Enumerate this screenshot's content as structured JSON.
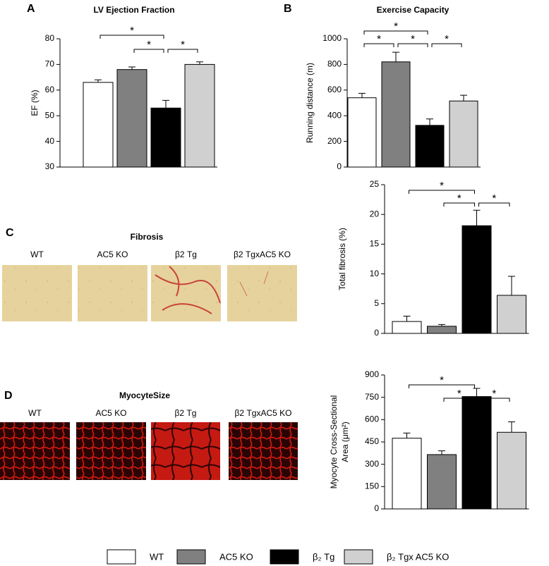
{
  "chart_data": [
    {
      "type": "bar",
      "panel": "A",
      "title": "LV Ejection Fraction",
      "ylabel": "EF (%)",
      "values": [
        63,
        68,
        53,
        70
      ],
      "errors": [
        1,
        1,
        3,
        1
      ],
      "ylim": [
        30,
        80
      ],
      "yticks": [
        30,
        40,
        50,
        60,
        70,
        80
      ],
      "brackets": [
        {
          "from": 0,
          "to": 2,
          "label": "*"
        },
        {
          "from": 1,
          "to": 2,
          "label": "*"
        },
        {
          "from": 2,
          "to": 3,
          "label": "*"
        }
      ]
    },
    {
      "type": "bar",
      "panel": "B",
      "title": "Exercise Capacity",
      "ylabel": "Running distance (m)",
      "values": [
        540,
        820,
        325,
        515
      ],
      "errors": [
        35,
        75,
        50,
        45
      ],
      "ylim": [
        0,
        1000
      ],
      "yticks": [
        0,
        200,
        400,
        600,
        800,
        1000
      ],
      "brackets": [
        {
          "from": 0,
          "to": 2,
          "label": "*"
        },
        {
          "from": 0,
          "to": 1,
          "label": "*"
        },
        {
          "from": 1,
          "to": 2,
          "label": "*"
        },
        {
          "from": 2,
          "to": 3,
          "label": "*"
        }
      ]
    },
    {
      "type": "bar",
      "ylabel": "Total fibrosis (%)",
      "values": [
        2,
        1.2,
        18.1,
        6.4
      ],
      "errors": [
        0.9,
        0.3,
        2.6,
        3.2
      ],
      "ylim": [
        0,
        25
      ],
      "yticks": [
        0,
        5,
        10,
        15,
        20,
        25
      ],
      "brackets": [
        {
          "from": 0,
          "to": 2,
          "label": "*"
        },
        {
          "from": 1,
          "to": 2,
          "label": "*"
        },
        {
          "from": 2,
          "to": 3,
          "label": "*"
        }
      ]
    },
    {
      "type": "bar",
      "ylabel": [
        "Myocyte Cross-Sectional",
        "Area  (μm²)"
      ],
      "values": [
        475,
        365,
        755,
        515
      ],
      "errors": [
        35,
        25,
        55,
        70
      ],
      "ylim": [
        0,
        900
      ],
      "yticks": [
        0,
        150,
        300,
        450,
        600,
        750,
        900
      ],
      "brackets": [
        {
          "from": 0,
          "to": 2,
          "label": "*"
        },
        {
          "from": 1,
          "to": 2,
          "label": "*"
        },
        {
          "from": 2,
          "to": 3,
          "label": "*"
        }
      ]
    }
  ],
  "legend": [
    {
      "name": "WT",
      "color": "#ffffff"
    },
    {
      "name": "AC5 KO",
      "color": "#808080"
    },
    {
      "name": "β₂ Tg",
      "color": "#000000"
    },
    {
      "name": "β₂ Tgx AC5 KO",
      "color": "#d0d0d0"
    }
  ],
  "panel_c": {
    "letter": "C",
    "title": "Fibrosis",
    "images": [
      "WT",
      "AC5 KO",
      "β2 Tg",
      "β2 TgxAC5 KO"
    ]
  },
  "panel_d": {
    "letter": "D",
    "title": "MyocyteSize",
    "images": [
      "WT",
      "AC5 KO",
      "β2 Tg",
      "β2 TgxAC5 KO"
    ]
  }
}
